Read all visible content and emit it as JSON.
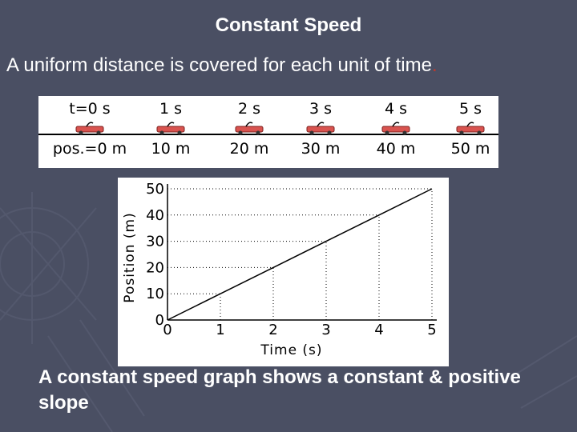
{
  "slide": {
    "title": "Constant Speed",
    "subtitle": "A uniform distance is covered for each unit of time",
    "subtitle_end": ".",
    "conclusion": "A constant speed graph shows a constant & positive slope"
  },
  "strip": {
    "time_labels": [
      "t=0 s",
      "1 s",
      "2 s",
      "3 s",
      "4 s",
      "5 s"
    ],
    "position_labels": [
      "pos.=0 m",
      "10 m",
      "20 m",
      "30 m",
      "40 m",
      "50 m"
    ],
    "car_color": "#d9534f"
  },
  "chart_data": {
    "type": "line",
    "xlabel": "Time (s)",
    "ylabel": "Position (m)",
    "x": [
      0,
      1,
      2,
      3,
      4,
      5
    ],
    "y": [
      0,
      10,
      20,
      30,
      40,
      50
    ],
    "xlim": [
      0,
      5
    ],
    "ylim": [
      0,
      50
    ],
    "xticks": [
      "0",
      "1",
      "2",
      "3",
      "4",
      "5"
    ],
    "yticks": [
      "0",
      "10",
      "20",
      "30",
      "40",
      "50"
    ],
    "grid": "dotted",
    "legend": "none",
    "line_color": "#000000"
  }
}
